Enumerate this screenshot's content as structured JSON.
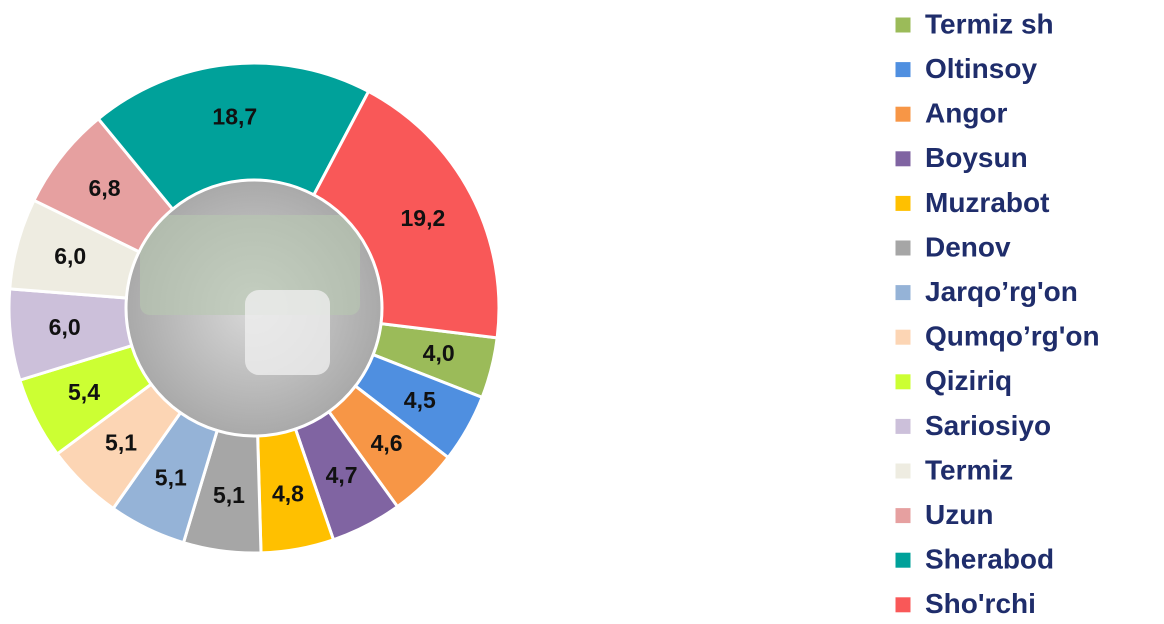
{
  "chart_data": {
    "type": "pie",
    "donut": true,
    "categories": [
      "Termiz sh",
      "Oltinsoy",
      "Angor",
      "Boysun",
      "Muzrabot",
      "Denov",
      "Jarqo’rg'on",
      "Qumqo’rg'on",
      "Qiziriq",
      "Sariosiyo",
      "Termiz",
      "Uzun",
      "Sherabod",
      "Sho'rchi"
    ],
    "values": [
      4.0,
      4.5,
      4.6,
      4.7,
      4.8,
      5.1,
      5.1,
      5.1,
      5.4,
      6.0,
      6.0,
      6.8,
      18.7,
      19.2
    ],
    "value_labels": [
      "4,0",
      "4,5",
      "4,6",
      "4,7",
      "4,8",
      "5,1",
      "5,1",
      "5,1",
      "5,4",
      "6,0",
      "6,0",
      "6,8",
      "18,7",
      "19,2"
    ],
    "colors": [
      "#9bbb59",
      "#4f8fe0",
      "#f79646",
      "#8064a2",
      "#ffc000",
      "#a6a6a6",
      "#95b3d7",
      "#fcd5b4",
      "#ccff33",
      "#ccc0da",
      "#eeece1",
      "#e6a0a0",
      "#00a19a",
      "#f95858"
    ],
    "legend": "right"
  }
}
